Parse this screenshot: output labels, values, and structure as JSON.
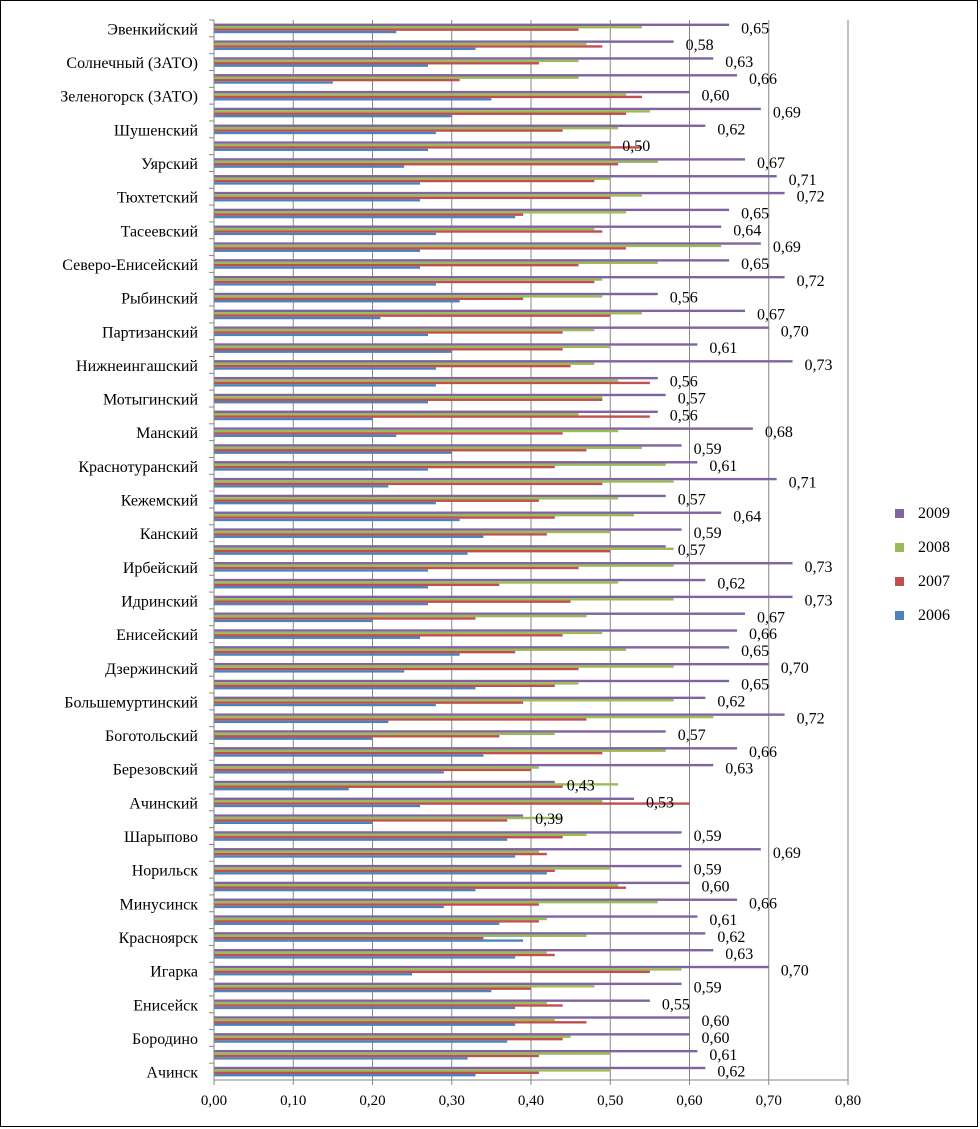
{
  "chart_data": {
    "type": "bar",
    "orientation": "horizontal",
    "categories": [
      "Эвенкийский",
      "",
      "Солнечный (ЗАТО)",
      "",
      "Зеленогорск (ЗАТО)",
      "",
      "Шушенский",
      "",
      "Уярский",
      "",
      "Тюхтетский",
      "",
      "Тасеевский",
      "",
      "Северо-Енисейский",
      "",
      "Рыбинский",
      "",
      "Партизанский",
      "",
      "Нижнеингашский",
      "",
      "Мотыгинский",
      "",
      "Манский",
      "",
      "Краснотуранский",
      "",
      "Кежемский",
      "",
      "Канский",
      "",
      "Ирбейский",
      "",
      "Идринский",
      "",
      "Енисейский",
      "",
      "Дзержинский",
      "",
      "Большемуртинский",
      "",
      "Боготольский",
      "",
      "Березовский",
      "",
      "Ачинский",
      "",
      "Шарыпово",
      "",
      "Норильск",
      "",
      "Минусинск",
      "",
      "Красноярск",
      "",
      "Игарка",
      "",
      "Енисейск",
      "",
      "Бородино",
      "",
      "Ачинск"
    ],
    "series": [
      {
        "name": "2009",
        "color": "#8064A2",
        "values": [
          0.65,
          0.58,
          0.63,
          0.66,
          0.6,
          0.69,
          0.62,
          0.5,
          0.67,
          0.71,
          0.72,
          0.65,
          0.64,
          0.69,
          0.65,
          0.72,
          0.56,
          0.67,
          0.7,
          0.61,
          0.73,
          0.56,
          0.57,
          0.56,
          0.68,
          0.59,
          0.61,
          0.71,
          0.57,
          0.64,
          0.59,
          0.57,
          0.73,
          0.62,
          0.73,
          0.67,
          0.66,
          0.65,
          0.7,
          0.65,
          0.62,
          0.72,
          0.57,
          0.66,
          0.63,
          0.43,
          0.53,
          0.39,
          0.59,
          0.69,
          0.59,
          0.6,
          0.66,
          0.61,
          0.62,
          0.63,
          0.7,
          0.59,
          0.55,
          0.6,
          0.6,
          0.61,
          0.62
        ]
      },
      {
        "name": "2008",
        "color": "#9BBB59",
        "values": [
          0.54,
          0.47,
          0.46,
          0.46,
          0.52,
          0.55,
          0.51,
          0.5,
          0.56,
          0.5,
          0.54,
          0.52,
          0.48,
          0.64,
          0.56,
          0.49,
          0.49,
          0.54,
          0.48,
          0.5,
          0.48,
          0.51,
          0.49,
          0.46,
          0.51,
          0.54,
          0.57,
          0.58,
          0.51,
          0.53,
          0.5,
          0.58,
          0.58,
          0.51,
          0.58,
          0.47,
          0.49,
          0.52,
          0.58,
          0.46,
          0.58,
          0.63,
          0.43,
          0.57,
          0.41,
          0.51,
          0.49,
          0.44,
          0.47,
          0.41,
          0.5,
          0.51,
          0.56,
          0.42,
          0.47,
          0.42,
          0.59,
          0.48,
          0.42,
          0.43,
          0.45,
          0.5,
          0.5
        ]
      },
      {
        "name": "2007",
        "color": "#C0504D",
        "values": [
          0.46,
          0.49,
          0.41,
          0.31,
          0.54,
          0.52,
          0.44,
          0.54,
          0.51,
          0.48,
          0.5,
          0.39,
          0.49,
          0.52,
          0.46,
          0.48,
          0.39,
          0.5,
          0.44,
          0.44,
          0.45,
          0.55,
          0.49,
          0.55,
          0.44,
          0.47,
          0.43,
          0.49,
          0.41,
          0.43,
          0.42,
          0.5,
          0.46,
          0.36,
          0.45,
          0.33,
          0.44,
          0.38,
          0.46,
          0.43,
          0.39,
          0.47,
          0.36,
          0.49,
          0.4,
          0.44,
          0.6,
          0.37,
          0.44,
          0.42,
          0.43,
          0.52,
          0.41,
          0.41,
          0.34,
          0.43,
          0.55,
          0.4,
          0.44,
          0.47,
          0.44,
          0.41,
          0.41
        ]
      },
      {
        "name": "2006",
        "color": "#4F81BD",
        "values": [
          0.23,
          0.33,
          0.27,
          0.15,
          0.35,
          0.3,
          0.28,
          0.27,
          0.24,
          0.26,
          0.26,
          0.38,
          0.28,
          0.26,
          0.26,
          0.28,
          0.31,
          0.21,
          0.27,
          0.3,
          0.28,
          0.28,
          0.27,
          0.2,
          0.23,
          0.3,
          0.27,
          0.22,
          0.28,
          0.31,
          0.34,
          0.32,
          0.27,
          0.27,
          0.27,
          0.2,
          0.26,
          0.31,
          0.24,
          0.33,
          0.28,
          0.22,
          0.2,
          0.34,
          0.29,
          0.17,
          0.26,
          0.2,
          0.37,
          0.38,
          0.42,
          0.33,
          0.29,
          0.36,
          0.39,
          0.38,
          0.25,
          0.35,
          0.38,
          0.38,
          0.37,
          0.32,
          0.33
        ]
      }
    ],
    "data_label_series": "2009",
    "xlim": [
      0,
      0.8
    ],
    "x_ticks": [
      "0,00",
      "0,10",
      "0,20",
      "0,30",
      "0,40",
      "0,50",
      "0,60",
      "0,70",
      "0,80"
    ],
    "grid": "vertical",
    "legend_position": "right",
    "decimal_separator": ","
  }
}
